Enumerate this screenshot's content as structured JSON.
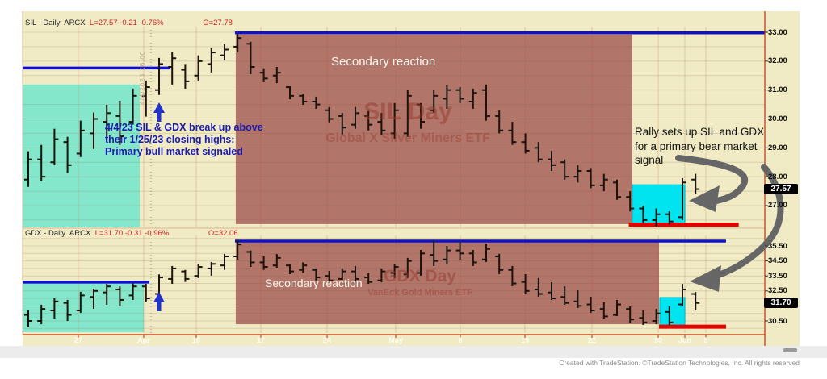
{
  "panels": [
    {
      "header": {
        "symbol": "SIL - Daily",
        "exchange": "ARCX",
        "quote": "L=27.57  -0.21  -0.76%",
        "open": "O=27.78"
      },
      "watermark": {
        "line1": "SIL Day",
        "line2": "Global X Silver Miners ETF"
      },
      "price_labels": [
        "33.00",
        "32.00",
        "31.00",
        "30.00",
        "29.00",
        "28.00",
        "27.00"
      ],
      "last_price_badge": "27.57",
      "secondary_reaction_label": "Secondary reaction"
    },
    {
      "header": {
        "symbol": "GDX - Daily",
        "exchange": "ARCX",
        "quote": "L=31.70  -0.31  -0.96%",
        "open": "O=32.06"
      },
      "watermark": {
        "line1": "GDX Day",
        "line2": "VanEck Gold Miners ETF"
      },
      "price_labels": [
        "35.50",
        "34.50",
        "33.50",
        "32.50",
        "30.50"
      ],
      "last_price_badge": "31.70",
      "secondary_reaction_label": "Secondary reaction"
    }
  ],
  "annotations": {
    "bull_signal": "4/4/23 SIL & GDX break up above\ntheir 1/25/23 closing highs:\nPrimary bull market signaled",
    "bear_setup": "Rally sets up SIL and GDX\nfor a primary bear market\nsignal",
    "event_timestamp": "4/4/2023 16:00"
  },
  "x_axis": {
    "tick_labels": [
      "27",
      "Apr",
      "10",
      "17",
      "24",
      "May",
      "8",
      "15",
      "22",
      "30",
      "Jun",
      "5"
    ]
  },
  "copyright": "Created with TradeStation. ©TradeStation Technologies, Inc. All rights reserved",
  "colors": {
    "chart_bg": "#F0EBC5",
    "mint_zone": "#84E7CC",
    "brown_zone": "#B2756A",
    "cyan_zone": "#00E4F0",
    "blue_line": "#1111CC",
    "red_line": "#E60000",
    "bar": "#1a140a",
    "gray_arrow": "#666666",
    "blue_arrow": "#2233cc",
    "axis_frame": "#C03000",
    "badge_bg": "#000000"
  },
  "chart_data": [
    {
      "type": "bar",
      "symbol": "SIL",
      "interval": "Daily",
      "ohlc_note": "values estimated from axis; bars Mar 21 - Jun 1 2023",
      "ylim": [
        26.2,
        33.3
      ],
      "bars": [
        [
          28.88,
          27.65,
          27.9,
          28.6
        ],
        [
          29.1,
          27.85,
          28.6,
          28.0
        ],
        [
          29.66,
          28.4,
          28.5,
          29.3
        ],
        [
          29.38,
          28.13,
          29.2,
          28.4
        ],
        [
          29.94,
          28.68,
          28.8,
          29.6
        ],
        [
          30.22,
          28.96,
          29.5,
          30.0
        ],
        [
          30.49,
          29.24,
          29.9,
          30.2
        ],
        [
          30.63,
          29.1,
          30.1,
          29.4
        ],
        [
          31.05,
          29.8,
          29.9,
          30.8
        ],
        [
          31.33,
          30.08,
          30.8,
          31.1
        ],
        [
          32.11,
          30.83,
          31.0,
          31.9
        ],
        [
          32.3,
          31.19,
          31.8,
          32.1
        ],
        [
          31.9,
          31.05,
          31.7,
          31.3
        ],
        [
          32.2,
          31.33,
          31.5,
          32.0
        ],
        [
          32.44,
          31.61,
          31.9,
          32.3
        ],
        [
          32.58,
          32.03,
          32.2,
          32.4
        ],
        [
          32.94,
          32.3,
          32.5,
          32.8
        ],
        [
          32.67,
          31.55,
          32.6,
          31.8
        ],
        [
          31.75,
          31.27,
          31.6,
          31.4
        ],
        [
          31.8,
          31.24,
          31.5,
          31.6
        ],
        [
          31.13,
          30.68,
          31.1,
          30.8
        ],
        [
          30.85,
          30.49,
          30.8,
          30.6
        ],
        [
          30.77,
          30.35,
          30.6,
          30.5
        ],
        [
          30.41,
          29.88,
          30.3,
          30.0
        ],
        [
          30.21,
          29.46,
          30.1,
          29.7
        ],
        [
          30.41,
          29.66,
          29.8,
          30.2
        ],
        [
          30.27,
          29.6,
          30.1,
          29.8
        ],
        [
          30.21,
          29.43,
          29.9,
          29.6
        ],
        [
          30.55,
          29.32,
          29.5,
          30.3
        ],
        [
          30.99,
          29.38,
          29.5,
          30.8
        ],
        [
          30.55,
          29.66,
          30.5,
          29.9
        ],
        [
          30.99,
          30.21,
          30.3,
          30.8
        ],
        [
          31.16,
          30.35,
          30.7,
          31.0
        ],
        [
          31.1,
          30.55,
          31.0,
          30.7
        ],
        [
          31.05,
          30.35,
          30.6,
          30.9
        ],
        [
          31.19,
          29.94,
          31.0,
          30.1
        ],
        [
          30.3,
          29.5,
          30.1,
          29.6
        ],
        [
          29.9,
          29.1,
          29.6,
          29.2
        ],
        [
          29.5,
          28.8,
          29.2,
          28.9
        ],
        [
          29.2,
          28.5,
          29.0,
          28.6
        ],
        [
          28.9,
          28.2,
          28.6,
          28.4
        ],
        [
          28.6,
          27.9,
          28.5,
          28.0
        ],
        [
          28.4,
          27.8,
          28.0,
          28.2
        ],
        [
          28.3,
          27.6,
          28.2,
          27.7
        ],
        [
          28.1,
          27.5,
          27.7,
          27.9
        ],
        [
          27.9,
          27.2,
          27.8,
          27.3
        ],
        [
          27.5,
          26.8,
          27.3,
          26.9
        ],
        [
          27.0,
          26.4,
          26.9,
          26.5
        ],
        [
          26.9,
          26.2,
          26.5,
          26.7
        ],
        [
          26.8,
          26.35,
          26.7,
          26.45
        ],
        [
          27.95,
          26.5,
          26.6,
          27.8
        ],
        [
          28.1,
          27.4,
          27.9,
          27.57
        ]
      ],
      "levels": [
        {
          "name": "jan25-closing-high",
          "price": 31.76,
          "i0": -0.43,
          "i1": 10.86,
          "style": "blue"
        },
        {
          "name": "secondary-reaction-high",
          "price": 32.98,
          "i0": 15.8,
          "i1": 56.3,
          "style": "blue"
        },
        {
          "name": "bear-signal-support",
          "price": 26.34,
          "i0": 45.9,
          "i1": 54.3,
          "style": "red"
        }
      ],
      "zones": [
        {
          "name": "accumulation-zone",
          "kind": "mint",
          "i0": -0.43,
          "i1": 8.52,
          "p_top": 31.19,
          "p_bot": 26.2
        },
        {
          "name": "secondary-reaction-zone",
          "kind": "brown",
          "i0": 15.86,
          "i1": 46.17,
          "p_top": 32.92,
          "p_bot": 26.36
        },
        {
          "name": "rally-zone",
          "kind": "cyan",
          "i0": 46.17,
          "i1": 50.19,
          "p_top": 27.72,
          "p_bot": 26.36
        }
      ],
      "breakout_bar_index": 10,
      "last_close": 27.57
    },
    {
      "type": "bar",
      "symbol": "GDX",
      "interval": "Daily",
      "ohlc_note": "values estimated from axis; bars Mar 21 - Jun 1 2023",
      "ylim": [
        29.8,
        36.3
      ],
      "bars": [
        [
          31.2,
          30.12,
          30.9,
          30.5
        ],
        [
          31.58,
          30.28,
          30.5,
          31.3
        ],
        [
          32.0,
          30.66,
          31.2,
          31.8
        ],
        [
          31.9,
          30.5,
          31.7,
          30.9
        ],
        [
          32.44,
          31.04,
          31.2,
          32.2
        ],
        [
          32.65,
          31.31,
          32.1,
          32.5
        ],
        [
          32.97,
          31.58,
          32.4,
          32.8
        ],
        [
          32.8,
          31.47,
          32.6,
          31.9
        ],
        [
          33.0,
          31.9,
          32.2,
          32.8
        ],
        [
          32.97,
          31.74,
          32.8,
          32.0
        ],
        [
          33.6,
          32.1,
          32.3,
          33.4
        ],
        [
          34.16,
          32.97,
          33.3,
          34.0
        ],
        [
          33.9,
          33.1,
          33.8,
          33.3
        ],
        [
          34.27,
          33.36,
          33.5,
          34.1
        ],
        [
          34.43,
          33.52,
          34.0,
          34.3
        ],
        [
          34.97,
          33.9,
          34.2,
          34.8
        ],
        [
          35.88,
          34.59,
          34.8,
          35.6
        ],
        [
          35.2,
          34.1,
          35.1,
          34.4
        ],
        [
          34.8,
          33.9,
          34.4,
          34.1
        ],
        [
          34.96,
          34.05,
          34.2,
          34.7
        ],
        [
          34.26,
          33.62,
          34.2,
          33.8
        ],
        [
          34.4,
          33.7,
          33.9,
          34.2
        ],
        [
          34.0,
          33.2,
          33.9,
          33.4
        ],
        [
          33.83,
          33.08,
          33.5,
          33.2
        ],
        [
          34.0,
          33.24,
          33.3,
          33.8
        ],
        [
          34.16,
          33.13,
          33.8,
          33.3
        ],
        [
          33.7,
          32.97,
          33.4,
          33.1
        ],
        [
          34.0,
          33.08,
          33.2,
          33.8
        ],
        [
          34.26,
          33.36,
          33.7,
          34.1
        ],
        [
          34.7,
          33.36,
          33.6,
          34.5
        ],
        [
          35.23,
          33.52,
          33.7,
          35.0
        ],
        [
          35.85,
          34.16,
          34.9,
          34.5
        ],
        [
          35.5,
          34.26,
          34.6,
          35.2
        ],
        [
          35.77,
          34.59,
          35.2,
          35.0
        ],
        [
          35.23,
          34.16,
          35.0,
          34.4
        ],
        [
          35.66,
          34.43,
          34.6,
          35.3
        ],
        [
          34.97,
          33.62,
          34.8,
          33.9
        ],
        [
          34.16,
          32.81,
          33.9,
          33.0
        ],
        [
          33.62,
          32.27,
          33.1,
          32.5
        ],
        [
          33.36,
          32.11,
          32.6,
          32.3
        ],
        [
          33.08,
          31.9,
          32.4,
          32.0
        ],
        [
          32.81,
          31.58,
          32.1,
          31.7
        ],
        [
          32.54,
          31.36,
          31.8,
          31.5
        ],
        [
          32.11,
          31.04,
          31.6,
          31.2
        ],
        [
          31.74,
          30.66,
          31.3,
          30.8
        ],
        [
          31.9,
          30.82,
          30.9,
          31.6
        ],
        [
          31.47,
          30.39,
          31.3,
          30.6
        ],
        [
          31.2,
          30.23,
          30.7,
          30.4
        ],
        [
          31.31,
          30.28,
          30.5,
          31.0
        ],
        [
          31.47,
          30.23,
          31.1,
          30.4
        ],
        [
          32.97,
          31.47,
          31.6,
          32.6
        ],
        [
          32.43,
          31.2,
          32.3,
          31.7
        ]
      ],
      "levels": [
        {
          "name": "jan25-closing-high",
          "price": 33.09,
          "i0": -0.43,
          "i1": 9.26,
          "style": "blue"
        },
        {
          "name": "secondary-reaction-high",
          "price": 35.82,
          "i0": 15.8,
          "i1": 53.33,
          "style": "blue"
        },
        {
          "name": "bear-signal-support",
          "price": 30.12,
          "i0": 48.21,
          "i1": 53.33,
          "style": "red"
        }
      ],
      "zones": [
        {
          "name": "accumulation-zone",
          "kind": "mint",
          "i0": -0.43,
          "i1": 8.83,
          "p_top": 33.08,
          "p_bot": 29.75
        },
        {
          "name": "secondary-reaction-zone",
          "kind": "brown",
          "i0": 15.86,
          "i1": 48.21,
          "p_top": 35.77,
          "p_bot": 30.28
        },
        {
          "name": "rally-zone",
          "kind": "cyan",
          "i0": 48.27,
          "i1": 50.19,
          "p_top": 32.06,
          "p_bot": 30.18
        }
      ],
      "breakout_bar_index": 10,
      "last_close": 31.7
    }
  ]
}
